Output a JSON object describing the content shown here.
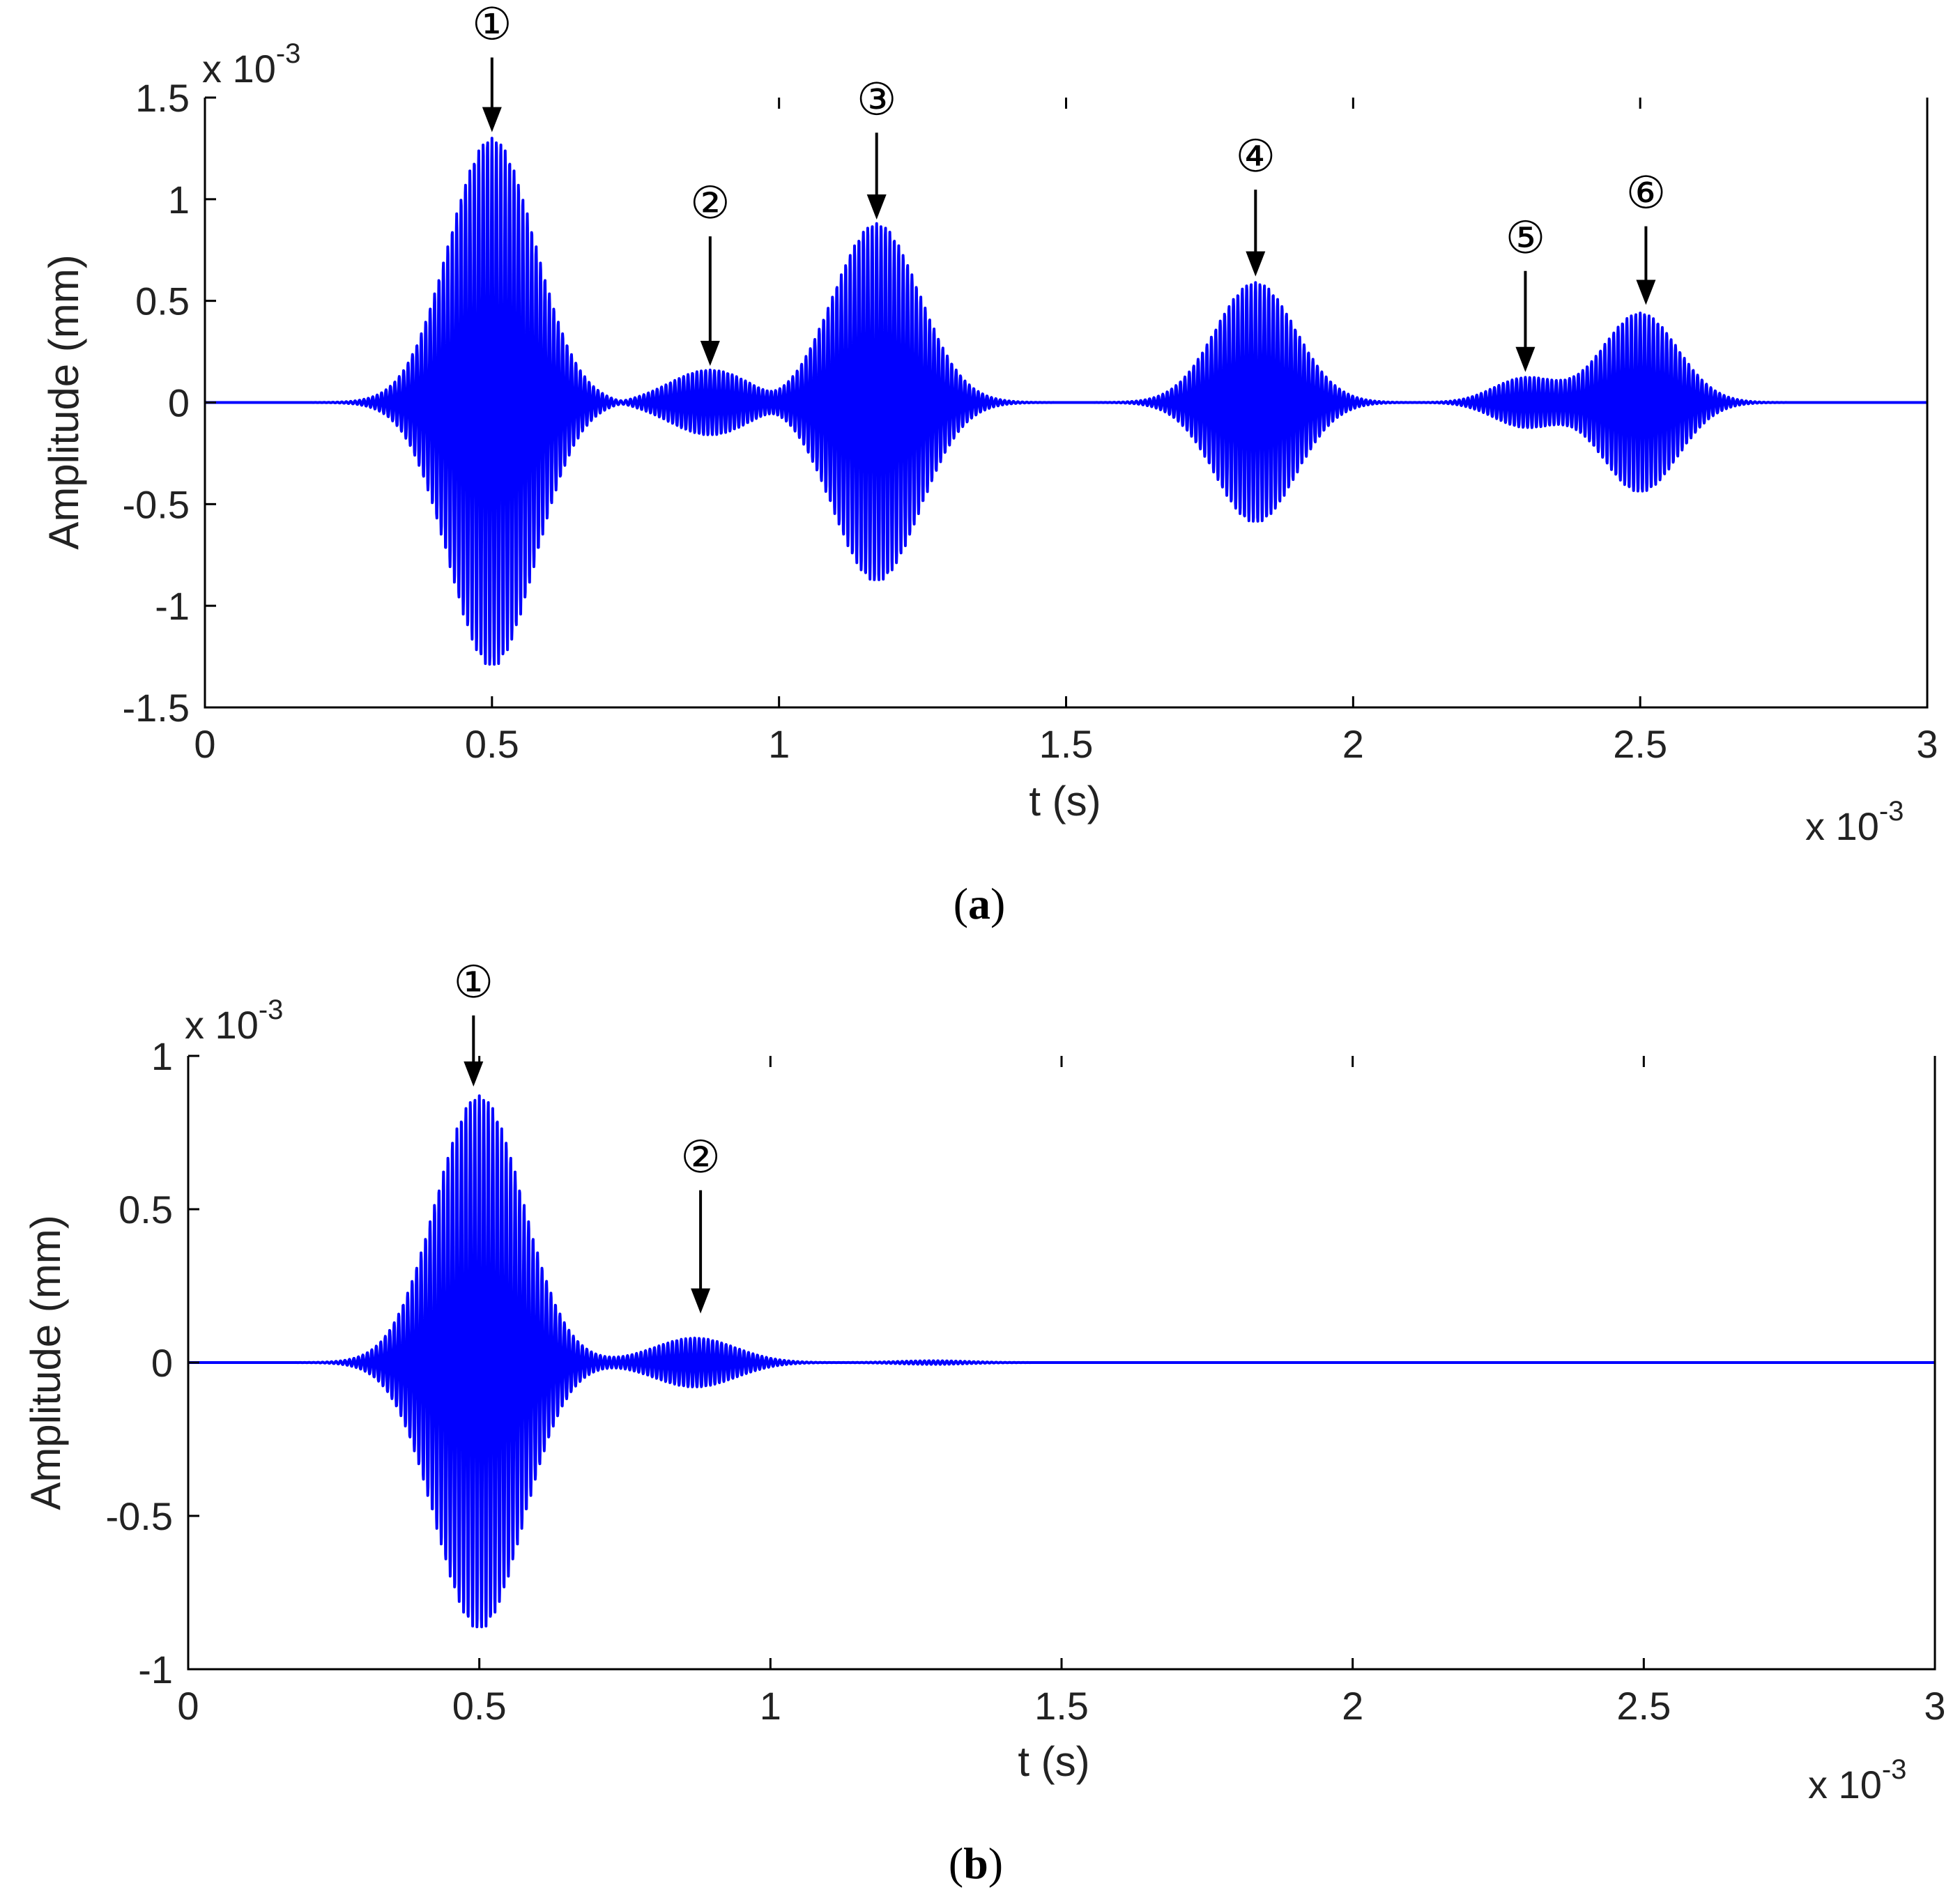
{
  "colors": {
    "signal": "#0000ff",
    "axis": "#000000",
    "background": "#ffffff"
  },
  "chart_data": [
    {
      "type": "line",
      "caption": "(a)",
      "xlabel": "t (s)",
      "ylabel": "Amplitude (mm)",
      "x_exponent": "x 10",
      "x_exponent_power": "-3",
      "y_exponent": "x 10",
      "y_exponent_power": "-3",
      "xlim": [
        0,
        3
      ],
      "ylim": [
        -1.5,
        1.5
      ],
      "xticks": [
        "0",
        "0.5",
        "1",
        "1.5",
        "2",
        "2.5",
        "3"
      ],
      "yticks": [
        "1.5",
        "1",
        "0.5",
        "0",
        "-0.5",
        "-1",
        "-1.5"
      ],
      "grid": false,
      "carrier_cycles_per_unit": 130,
      "packets": [
        {
          "center": 0.5,
          "width": 0.075,
          "amplitude": 1.3
        },
        {
          "center": 0.88,
          "width": 0.07,
          "amplitude": 0.16
        },
        {
          "center": 1.17,
          "width": 0.075,
          "amplitude": 0.88
        },
        {
          "center": 1.83,
          "width": 0.07,
          "amplitude": 0.59
        },
        {
          "center": 2.3,
          "width": 0.055,
          "amplitude": 0.12
        },
        {
          "center": 2.5,
          "width": 0.065,
          "amplitude": 0.44
        }
      ],
      "annotations": [
        {
          "label": "①",
          "x": 0.5,
          "y_tip": 1.33,
          "y_text": 1.8
        },
        {
          "label": "②",
          "x": 0.88,
          "y_tip": 0.18,
          "y_text": 0.92
        },
        {
          "label": "③",
          "x": 1.17,
          "y_tip": 0.9,
          "y_text": 1.43
        },
        {
          "label": "④",
          "x": 1.83,
          "y_tip": 0.62,
          "y_text": 1.15
        },
        {
          "label": "⑤",
          "x": 2.3,
          "y_tip": 0.15,
          "y_text": 0.75
        },
        {
          "label": "⑥",
          "x": 2.51,
          "y_tip": 0.48,
          "y_text": 0.97
        }
      ]
    },
    {
      "type": "line",
      "caption": "(b)",
      "xlabel": "t (s)",
      "ylabel": "Amplitude (mm)",
      "x_exponent": "x 10",
      "x_exponent_power": "-3",
      "y_exponent": "x 10",
      "y_exponent_power": "-3",
      "xlim": [
        0,
        3
      ],
      "ylim": [
        -1,
        1
      ],
      "xticks": [
        "0",
        "0.5",
        "1",
        "1.5",
        "2",
        "2.5",
        "3"
      ],
      "yticks": [
        "1",
        "0.5",
        "0",
        "-0.5",
        "-1"
      ],
      "grid": false,
      "carrier_cycles_per_unit": 130,
      "packets": [
        {
          "center": 0.5,
          "width": 0.075,
          "amplitude": 0.87
        },
        {
          "center": 0.87,
          "width": 0.07,
          "amplitude": 0.08
        },
        {
          "center": 1.28,
          "width": 0.06,
          "amplitude": 0.006
        }
      ],
      "annotations": [
        {
          "label": "①",
          "x": 0.49,
          "y_tip": 0.9,
          "y_text": 1.2
        },
        {
          "label": "②",
          "x": 0.88,
          "y_tip": 0.16,
          "y_text": 0.63
        }
      ]
    }
  ]
}
